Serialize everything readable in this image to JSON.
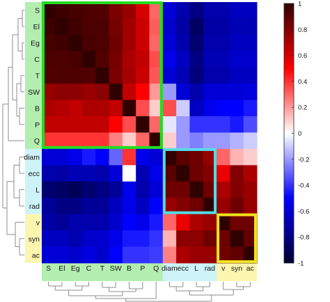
{
  "chart_data": {
    "type": "heatmap",
    "title": "",
    "xlabel": "",
    "ylabel": "",
    "labels": [
      "S",
      "El",
      "Eg",
      "C",
      "T",
      "SW",
      "B",
      "P",
      "Q",
      "diam",
      "ecc",
      "L",
      "rad",
      "v",
      "syn",
      "ac"
    ],
    "groups": [
      {
        "members": [
          "S",
          "El",
          "Eg",
          "C",
          "T",
          "SW",
          "B",
          "P",
          "Q"
        ],
        "band_color": "#b3eeb0",
        "box_color": "#22dd22"
      },
      {
        "members": [
          "diam",
          "ecc",
          "L",
          "rad"
        ],
        "band_color": "#cdf3f8",
        "box_color": "#55dde6"
      },
      {
        "members": [
          "v",
          "syn",
          "ac"
        ],
        "band_color": "#fbf5b0",
        "box_color": "#f2e21e"
      }
    ],
    "values": [
      [
        1.0,
        0.97,
        0.95,
        0.93,
        0.92,
        0.82,
        0.75,
        0.6,
        0.3,
        -0.6,
        -0.7,
        -0.8,
        -0.7,
        -0.7,
        -0.65,
        -0.65
      ],
      [
        0.97,
        1.0,
        0.96,
        0.93,
        0.93,
        0.83,
        0.73,
        0.62,
        0.32,
        -0.62,
        -0.72,
        -0.88,
        -0.72,
        -0.72,
        -0.68,
        -0.68
      ],
      [
        0.95,
        0.96,
        1.0,
        0.94,
        0.93,
        0.85,
        0.73,
        0.62,
        0.3,
        -0.6,
        -0.7,
        -0.85,
        -0.7,
        -0.7,
        -0.65,
        -0.65
      ],
      [
        0.93,
        0.93,
        0.94,
        1.0,
        0.92,
        0.83,
        0.7,
        0.65,
        0.35,
        -0.55,
        -0.65,
        -0.8,
        -0.68,
        -0.68,
        -0.62,
        -0.62
      ],
      [
        0.92,
        0.93,
        0.93,
        0.92,
        1.0,
        0.82,
        0.72,
        0.63,
        0.33,
        -0.6,
        -0.68,
        -0.82,
        -0.7,
        -0.7,
        -0.65,
        -0.65
      ],
      [
        0.75,
        0.78,
        0.78,
        0.75,
        0.78,
        1.0,
        0.65,
        0.5,
        0.2,
        -0.2,
        -0.6,
        -0.7,
        -0.6,
        -0.6,
        -0.6,
        -0.58
      ],
      [
        0.7,
        0.68,
        0.65,
        0.7,
        0.7,
        0.65,
        1.0,
        0.35,
        0.1,
        0.35,
        -0.1,
        -0.65,
        -0.55,
        -0.5,
        -0.5,
        -0.45
      ],
      [
        0.65,
        0.65,
        0.65,
        0.65,
        0.65,
        0.5,
        0.35,
        1.0,
        0.3,
        -0.05,
        -0.2,
        -0.4,
        -0.4,
        -0.4,
        -0.45,
        -0.35
      ],
      [
        0.4,
        0.4,
        0.4,
        0.4,
        0.4,
        0.25,
        0.1,
        0.3,
        1.0,
        0.1,
        -0.2,
        -0.25,
        -0.2,
        -0.2,
        -0.15,
        -0.1
      ],
      [
        -0.6,
        -0.6,
        -0.55,
        -0.45,
        -0.5,
        -0.3,
        0.4,
        -0.55,
        -0.6,
        1.0,
        0.9,
        0.85,
        0.75,
        0.3,
        0.15,
        0.1
      ],
      [
        -0.7,
        -0.72,
        -0.68,
        -0.68,
        -0.7,
        -0.6,
        0.0,
        -0.68,
        -0.55,
        0.9,
        1.0,
        0.85,
        0.8,
        0.55,
        0.8,
        0.7
      ],
      [
        -0.85,
        -0.88,
        -0.9,
        -0.85,
        -0.8,
        -0.75,
        -0.55,
        -0.7,
        -0.6,
        0.85,
        0.85,
        1.0,
        0.85,
        0.7,
        0.8,
        0.75
      ],
      [
        -0.75,
        -0.8,
        -0.8,
        -0.75,
        -0.75,
        -0.65,
        -0.55,
        -0.65,
        -0.5,
        0.75,
        0.8,
        0.85,
        1.0,
        0.75,
        0.85,
        0.75
      ],
      [
        -0.72,
        -0.75,
        -0.7,
        -0.7,
        -0.7,
        -0.62,
        -0.5,
        -0.55,
        -0.45,
        0.3,
        0.55,
        0.7,
        0.75,
        1.0,
        0.85,
        0.85
      ],
      [
        -0.65,
        -0.65,
        -0.7,
        -0.62,
        -0.62,
        -0.55,
        -0.45,
        -0.45,
        -0.4,
        0.15,
        0.78,
        0.78,
        0.85,
        0.85,
        1.0,
        0.88
      ],
      [
        -0.6,
        -0.6,
        -0.62,
        -0.58,
        -0.62,
        -0.5,
        -0.4,
        -0.4,
        -0.38,
        0.25,
        0.7,
        0.75,
        0.75,
        0.85,
        0.88,
        1.0
      ]
    ],
    "colorbar": {
      "range": [
        -1,
        1
      ],
      "ticks": [
        1,
        0.8,
        0.6,
        0.4,
        0.2,
        0,
        -0.2,
        -0.4,
        -0.6,
        -0.8,
        -1
      ],
      "tick_labels": [
        "1",
        "0.8",
        "0.6",
        "0.4",
        "0.2",
        "0",
        "-0.2",
        "-0.4",
        "-0.6",
        "-0.8",
        "-1"
      ],
      "colormap": "blue-white-red",
      "colors": {
        "neg_end": "#000030",
        "neg_mid": "#0000ff",
        "zero": "#ffffff",
        "pos_mid": "#ff0000",
        "pos_end": "#300000"
      }
    },
    "dendrogram": {
      "left": true,
      "bottom": true,
      "color": "#8c8c8c"
    },
    "grid": false,
    "legend": "colorbar-right"
  }
}
